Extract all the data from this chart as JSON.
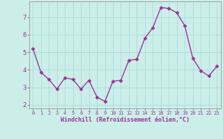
{
  "x": [
    0,
    1,
    2,
    3,
    4,
    5,
    6,
    7,
    8,
    9,
    10,
    11,
    12,
    13,
    14,
    15,
    16,
    17,
    18,
    19,
    20,
    21,
    22,
    23
  ],
  "y": [
    5.2,
    3.85,
    3.45,
    2.9,
    3.55,
    3.45,
    2.9,
    3.4,
    2.45,
    2.2,
    3.35,
    3.4,
    4.55,
    4.6,
    5.8,
    6.4,
    7.55,
    7.5,
    7.25,
    6.5,
    4.65,
    3.95,
    3.65,
    4.2
  ],
  "line_color": "#993399",
  "marker": "D",
  "marker_size": 2.5,
  "line_width": 1.0,
  "bg_color": "#cceee8",
  "grid_color": "#aadddd",
  "xlabel": "Windchill (Refroidissement éolien,°C)",
  "xlabel_color": "#993399",
  "tick_color": "#993399",
  "ylabel_ticks": [
    2,
    3,
    4,
    5,
    6,
    7
  ],
  "xlim": [
    -0.5,
    23.5
  ],
  "ylim": [
    1.8,
    7.9
  ]
}
